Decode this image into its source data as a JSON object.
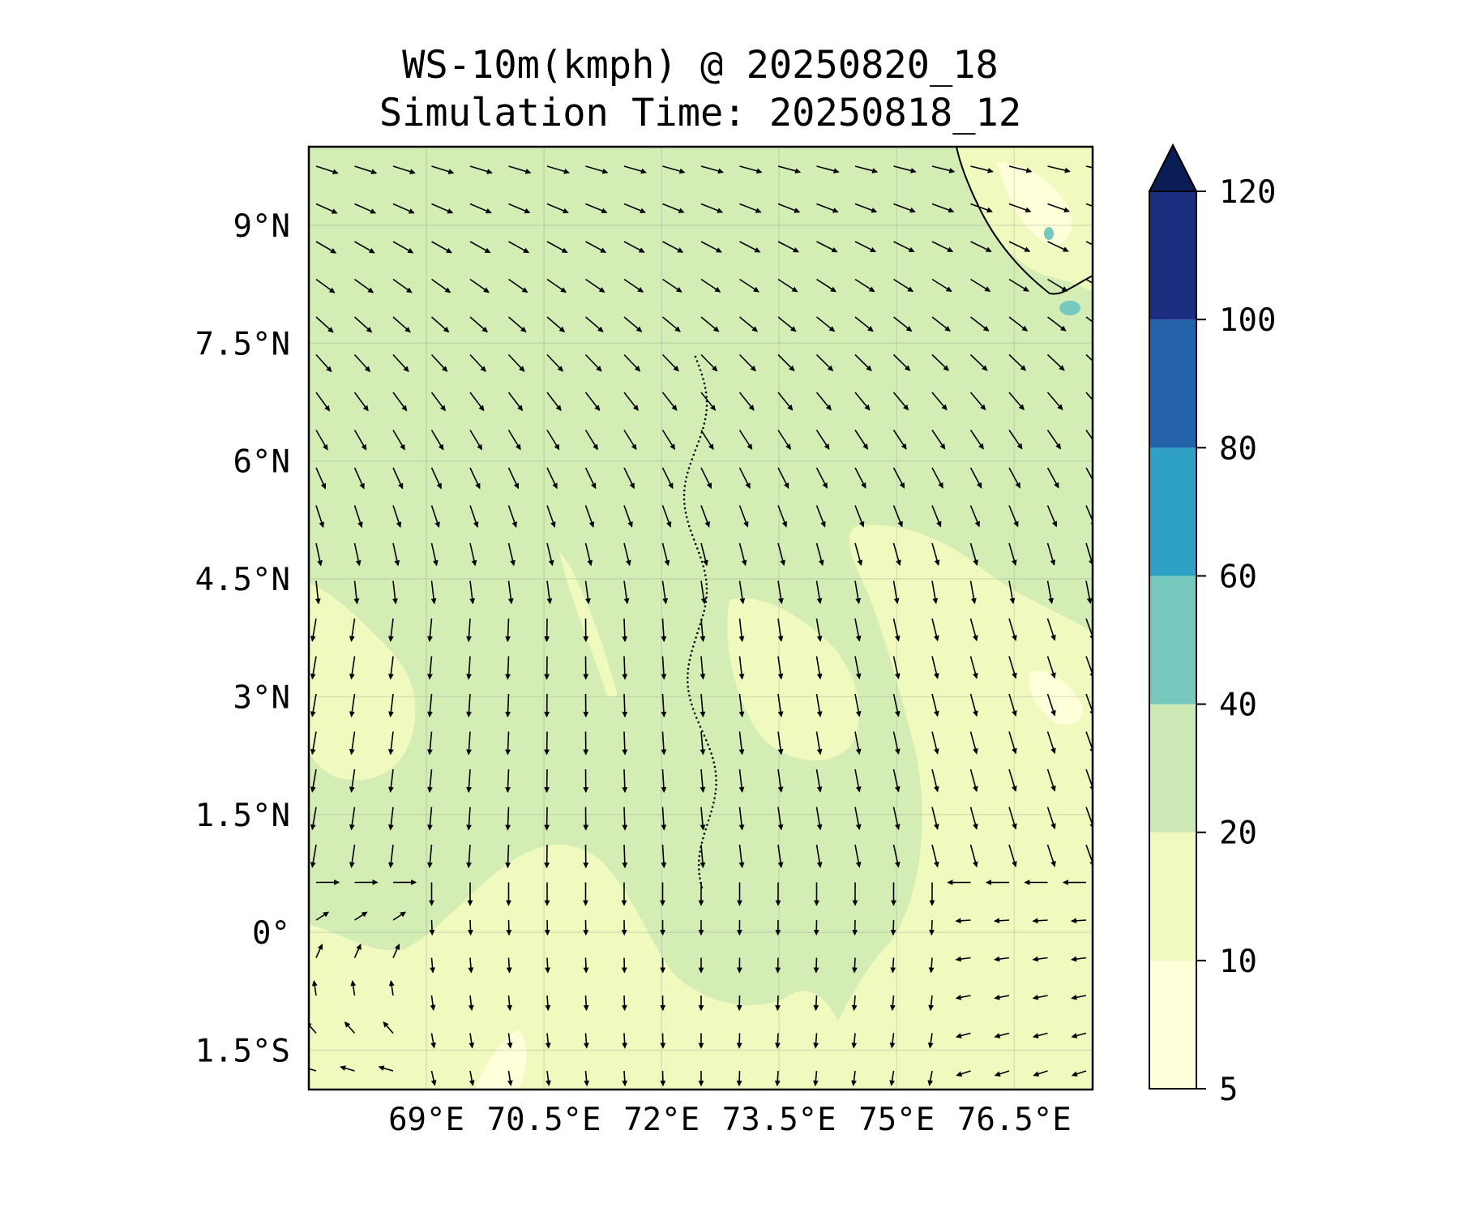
{
  "title": {
    "line1": "WS-10m(kmph) @ 20250820_18",
    "line2": "Simulation Time: 20250818_12"
  },
  "map": {
    "lon_range": [
      67.5,
      77.5
    ],
    "lat_range": [
      -2,
      10
    ],
    "gridlines": true,
    "projection": "PlateCarree",
    "y_ticks": [
      {
        "value": 9,
        "label": "9°N"
      },
      {
        "value": 7.5,
        "label": "7.5°N"
      },
      {
        "value": 6,
        "label": "6°N"
      },
      {
        "value": 4.5,
        "label": "4.5°N"
      },
      {
        "value": 3,
        "label": "3°N"
      },
      {
        "value": 1.5,
        "label": "1.5°N"
      },
      {
        "value": 0,
        "label": "0°"
      },
      {
        "value": -1.5,
        "label": "1.5°S"
      }
    ],
    "x_ticks": [
      {
        "value": 69,
        "label": "69°E"
      },
      {
        "value": 70.5,
        "label": "70.5°E"
      },
      {
        "value": 72,
        "label": "72°E"
      },
      {
        "value": 73.5,
        "label": "73.5°E"
      },
      {
        "value": 75,
        "label": "75°E"
      },
      {
        "value": 76.5,
        "label": "76.5°E"
      }
    ],
    "base_fill_color": "#d4edb5",
    "wind_vectors": "grid of black arrows, northwesterly in the north turning to northerly in the center and southerly/southeasterly in the south"
  },
  "colorbar": {
    "levels": [
      {
        "label": "5",
        "value": 5
      },
      {
        "label": "10",
        "value": 10
      },
      {
        "label": "20",
        "value": 20
      },
      {
        "label": "40",
        "value": 40
      },
      {
        "label": "60",
        "value": 60
      },
      {
        "label": "80",
        "value": 80
      },
      {
        "label": "100",
        "value": 100
      },
      {
        "label": "120",
        "value": 120
      }
    ],
    "colors": [
      "#ffffd9",
      "#f0f9be",
      "#cde9b5",
      "#77c9be",
      "#2fa1c7",
      "#2463ab",
      "#1c2e7f",
      "#0a1d54"
    ],
    "extend": "max"
  }
}
